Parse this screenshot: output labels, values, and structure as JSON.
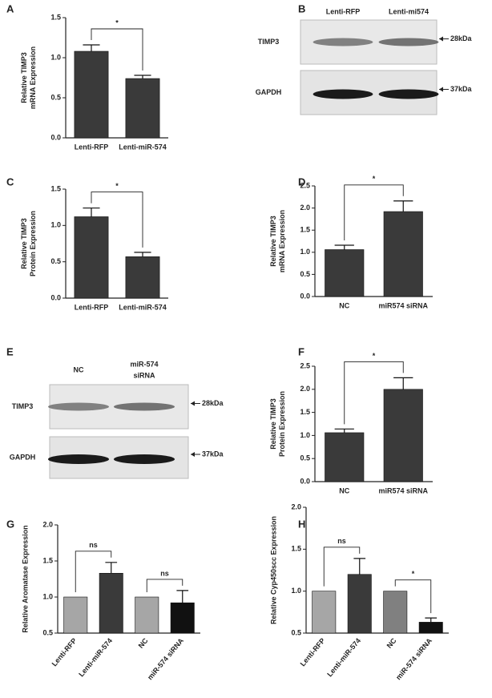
{
  "panel_labels": [
    "A",
    "B",
    "C",
    "D",
    "E",
    "F",
    "G",
    "H"
  ],
  "blots": [
    {
      "columns": [
        [
          "Lenti-RFP"
        ],
        [
          "Lenti-mi574"
        ]
      ],
      "rows": [
        "TIMP3",
        "GAPDH"
      ],
      "markers": [
        "28kDa",
        "37kDa"
      ]
    },
    {
      "columns": [
        [
          "NC"
        ],
        [
          "miR-574",
          "siRNA"
        ]
      ],
      "rows": [
        "TIMP3",
        "GAPDH"
      ],
      "markers": [
        "28kDa",
        "37kDa"
      ]
    }
  ],
  "chart_data": [
    {
      "type": "bar",
      "ylabel_lines": [
        "Relative TIMP3",
        "mRNA Expression"
      ],
      "categories": [
        "Lenti-RFP",
        "Lenti-miR-574"
      ],
      "values": [
        1.08,
        0.74
      ],
      "errors": [
        0.08,
        0.04
      ],
      "colors": [
        "#3a3a3a",
        "#3a3a3a"
      ],
      "ylim": [
        0,
        1.5
      ],
      "yticks": [
        {
          "value": 0,
          "label": "0.0"
        },
        0.5,
        {
          "value": 1,
          "label": "1.0"
        },
        1.5
      ],
      "significance": [
        "*"
      ]
    },
    {
      "type": "bar",
      "ylabel_lines": [
        "Relative TIMP3",
        "Protein Expression"
      ],
      "categories": [
        "Lenti-RFP",
        "Lenti-miR-574"
      ],
      "values": [
        1.12,
        0.57
      ],
      "errors": [
        0.12,
        0.06
      ],
      "colors": [
        "#3a3a3a",
        "#3a3a3a"
      ],
      "ylim": [
        0,
        1.5
      ],
      "yticks": [
        {
          "value": 0,
          "label": "0.0"
        },
        0.5,
        {
          "value": 1,
          "label": "1.0"
        },
        1.5
      ],
      "significance": [
        "*"
      ]
    },
    {
      "type": "bar",
      "ylabel_lines": [
        "Relative TIMP3",
        "mRNA Expression"
      ],
      "categories": [
        "NC",
        "miR574 siRNA"
      ],
      "values": [
        1.06,
        1.92
      ],
      "errors": [
        0.1,
        0.24
      ],
      "colors": [
        "#3a3a3a",
        "#3a3a3a"
      ],
      "ylim": [
        0,
        2.5
      ],
      "yticks": [
        {
          "value": 0,
          "label": "0.0"
        },
        0.5,
        {
          "value": 1,
          "label": "1.0"
        },
        1.5,
        {
          "value": 2,
          "label": "2.0"
        },
        2.5
      ],
      "significance": [
        "*"
      ]
    },
    {
      "type": "bar",
      "ylabel_lines": [
        "Relative TIMP3",
        "Protein Expression"
      ],
      "categories": [
        "NC",
        "miR574 siRNA"
      ],
      "values": [
        1.06,
        2.0
      ],
      "errors": [
        0.08,
        0.25
      ],
      "colors": [
        "#3a3a3a",
        "#3a3a3a"
      ],
      "ylim": [
        0,
        2.5
      ],
      "yticks": [
        {
          "value": 0,
          "label": "0.0"
        },
        0.5,
        {
          "value": 1,
          "label": "1.0"
        },
        1.5,
        {
          "value": 2,
          "label": "2.0"
        },
        2.5
      ],
      "significance": [
        "*"
      ]
    },
    {
      "type": "bar",
      "ylabel_lines": [
        "Relative Aromatase Expression"
      ],
      "categories": [
        "Lenti-RFP",
        "Lenti-miR-574",
        "NC",
        "miR-574 siRNA"
      ],
      "values": [
        1.0,
        1.33,
        1.0,
        0.92
      ],
      "errors": [
        null,
        0.15,
        null,
        0.17
      ],
      "colors": [
        "#a6a6a6",
        "#3a3a3a",
        "#a6a6a6",
        "#111111"
      ],
      "ylim": [
        0.5,
        2.0
      ],
      "yticks": [
        0.5,
        {
          "value": 1,
          "label": "1.0"
        },
        1.5,
        {
          "value": 2,
          "label": "2.0"
        }
      ],
      "significance": [
        "ns",
        "ns"
      ]
    },
    {
      "type": "bar",
      "ylabel_lines": [
        "Relative Cyp450scc Expression"
      ],
      "categories": [
        "Lenti-RFP",
        "Lenti-miR-574",
        "NC",
        "miR-574 siRNA"
      ],
      "values": [
        1.0,
        1.2,
        1.0,
        0.63
      ],
      "errors": [
        null,
        0.19,
        null,
        0.05
      ],
      "colors": [
        "#a6a6a6",
        "#3a3a3a",
        "#808080",
        "#111111"
      ],
      "ylim": [
        0.5,
        2.0
      ],
      "yticks": [
        0.5,
        {
          "value": 1,
          "label": "1.0"
        },
        1.5,
        {
          "value": 2,
          "label": "2.0"
        }
      ],
      "significance": [
        "ns",
        "*"
      ]
    }
  ]
}
